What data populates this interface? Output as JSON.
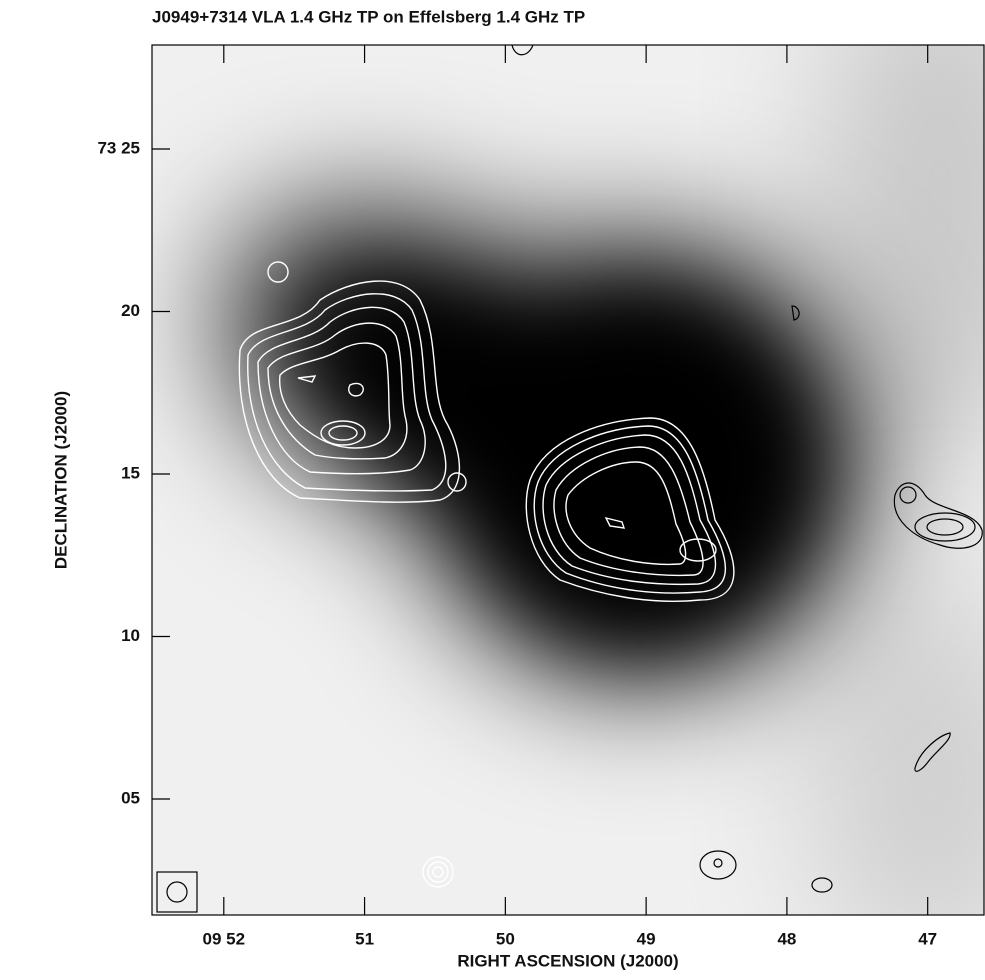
{
  "chart_data": {
    "type": "image",
    "title": "J0949+7314 VLA 1.4 GHz TP on Effelsberg 1.4 GHz TP",
    "x_label": "RIGHT ASCENSION (J2000)",
    "y_label": "DECLINATION (J2000)",
    "xlim": [
      52.51,
      46.6
    ],
    "xticks": [
      {
        "value": 52,
        "label": "09 52"
      },
      51,
      50,
      49,
      48,
      47
    ],
    "ylim": [
      1.43,
      28.2
    ],
    "yticks": [
      {
        "value": 25,
        "label": "73 25"
      },
      20,
      15,
      10,
      {
        "value": 5,
        "label": "05"
      }
    ]
  }
}
